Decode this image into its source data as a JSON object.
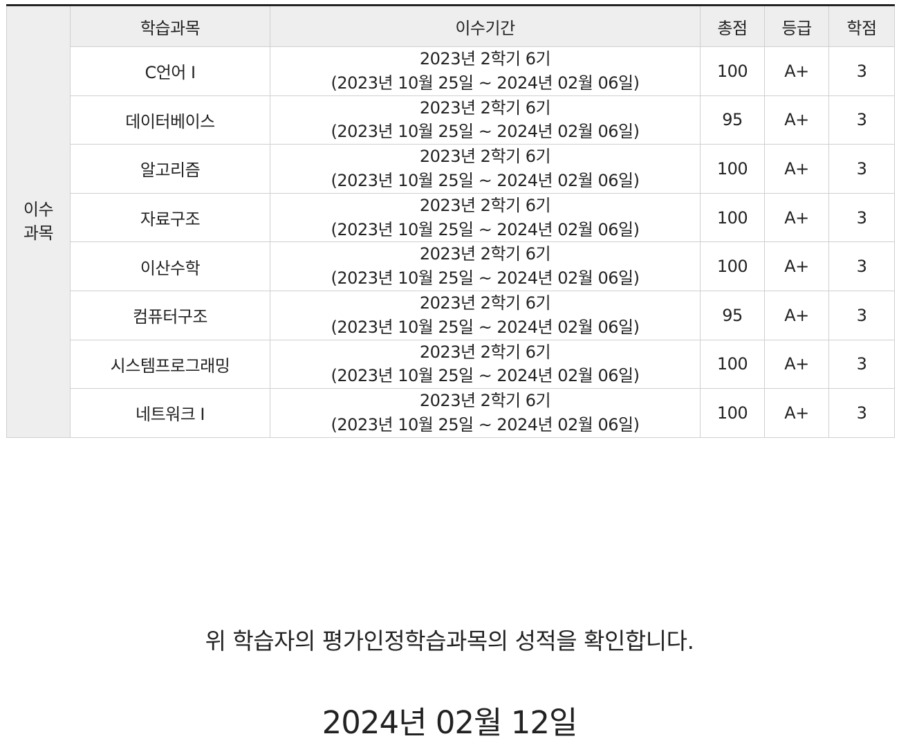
{
  "table": {
    "side_label_line1": "이수",
    "side_label_line2": "과목",
    "headers": [
      "학습과목",
      "이수기간",
      "총점",
      "등급",
      "학점"
    ],
    "rows": [
      {
        "subject": "C언어 I",
        "period_line1": "2023년 2학기 6기",
        "period_line2": "(2023년 10월 25일 ~ 2024년 02월 06일)",
        "score": "100",
        "grade": "A+",
        "credit": "3"
      },
      {
        "subject": "데이터베이스",
        "period_line1": "2023년 2학기 6기",
        "period_line2": "(2023년 10월 25일 ~ 2024년 02월 06일)",
        "score": "95",
        "grade": "A+",
        "credit": "3"
      },
      {
        "subject": "알고리즘",
        "period_line1": "2023년 2학기 6기",
        "period_line2": "(2023년 10월 25일 ~ 2024년 02월 06일)",
        "score": "100",
        "grade": "A+",
        "credit": "3"
      },
      {
        "subject": "자료구조",
        "period_line1": "2023년 2학기 6기",
        "period_line2": "(2023년 10월 25일 ~ 2024년 02월 06일)",
        "score": "100",
        "grade": "A+",
        "credit": "3"
      },
      {
        "subject": "이산수학",
        "period_line1": "2023년 2학기 6기",
        "period_line2": "(2023년 10월 25일 ~ 2024년 02월 06일)",
        "score": "100",
        "grade": "A+",
        "credit": "3"
      },
      {
        "subject": "컴퓨터구조",
        "period_line1": "2023년 2학기 6기",
        "period_line2": "(2023년 10월 25일 ~ 2024년 02월 06일)",
        "score": "95",
        "grade": "A+",
        "credit": "3"
      },
      {
        "subject": "시스템프로그래밍",
        "period_line1": "2023년 2학기 6기",
        "period_line2": "(2023년 10월 25일 ~ 2024년 02월 06일)",
        "score": "100",
        "grade": "A+",
        "credit": "3"
      },
      {
        "subject": "네트워크 I",
        "period_line1": "2023년 2학기 6기",
        "period_line2": "(2023년 10월 25일 ~ 2024년 02월 06일)",
        "score": "100",
        "grade": "A+",
        "credit": "3"
      }
    ]
  },
  "confirmation_text": "위 학습자의 평가인정학습과목의 성적을 확인합니다.",
  "issue_date": "2024년 02월 12일"
}
